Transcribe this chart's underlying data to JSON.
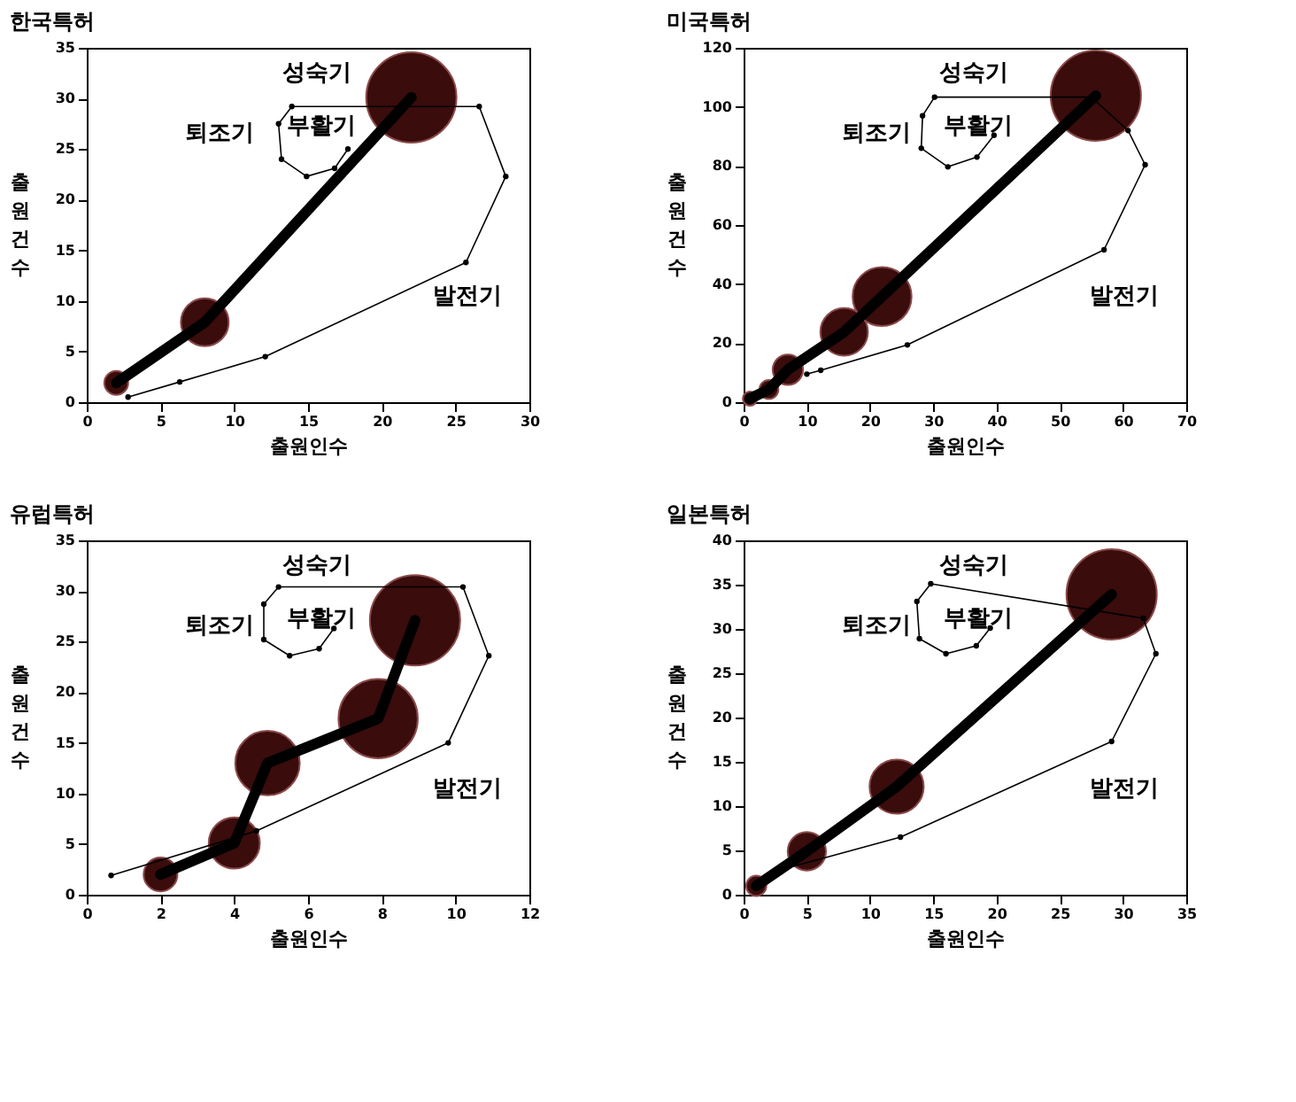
{
  "chart_data": [
    {
      "type": "bubble",
      "title": "한국특허",
      "xlabel": "출원인수",
      "ylabel": "출원건수",
      "xlim": [
        0,
        30
      ],
      "xticks": [
        0,
        5,
        10,
        15,
        20,
        25,
        30
      ],
      "ylim": [
        0,
        35
      ],
      "yticks": [
        0,
        5,
        10,
        15,
        20,
        25,
        30,
        35
      ],
      "grid": false,
      "series": [
        {
          "type": "line",
          "color": "#000000",
          "marker": "none",
          "x": [
            2.0,
            8.0,
            22.0
          ],
          "values": [
            1.9,
            7.9,
            30.1
          ]
        },
        {
          "type": "bubble",
          "color": "#3a0c0c",
          "x": [
            2.0,
            8.0,
            22.0
          ],
          "values": [
            1.9,
            7.9,
            30.1
          ],
          "sizes": [
            0.07,
            0.28,
            1
          ]
        },
        {
          "type": "line",
          "color": "#000000",
          "marker": "circle",
          "x": [
            2.8,
            6.3,
            12.1,
            25.7,
            28.4,
            26.6,
            13.9,
            13.0,
            13.2,
            14.9,
            16.8,
            17.7
          ],
          "values": [
            0.5,
            2.0,
            4.5,
            13.8,
            22.3,
            29.2,
            29.2,
            27.5,
            24.0,
            22.3,
            23.1,
            25.0
          ]
        }
      ],
      "annotations": [
        "성숙기",
        "퇴조기",
        "부활기",
        "발전기"
      ]
    },
    {
      "type": "bubble",
      "title": "미국특허",
      "xlabel": "출원인수",
      "ylabel": "출원건수",
      "xlim": [
        0,
        70
      ],
      "xticks": [
        0,
        10,
        20,
        30,
        40,
        50,
        60,
        70
      ],
      "ylim": [
        0,
        120
      ],
      "yticks": [
        0,
        20,
        40,
        60,
        80,
        100,
        120
      ],
      "grid": false,
      "series": [
        {
          "type": "line",
          "color": "#000000",
          "marker": "none",
          "x": [
            1.0,
            4.0,
            7.0,
            15.9,
            21.9,
            55.7
          ],
          "values": [
            1.2,
            4.3,
            11.0,
            23.8,
            35.8,
            103.8
          ]
        },
        {
          "type": "bubble",
          "color": "#3a0c0c",
          "x": [
            1.0,
            4.0,
            7.0,
            15.9,
            21.9,
            55.7
          ],
          "values": [
            1.2,
            4.3,
            11.0,
            23.8,
            35.8,
            103.8
          ],
          "sizes": [
            0.025,
            0.044,
            0.113,
            0.277,
            0.426,
            1
          ]
        },
        {
          "type": "line",
          "color": "#000000",
          "marker": "circle",
          "x": [
            10.0,
            12.2,
            25.9,
            57.0,
            63.5,
            60.8,
            55.0,
            30.2,
            28.3,
            28.1,
            32.3,
            36.9,
            39.6
          ],
          "values": [
            9.5,
            10.8,
            19.4,
            51.6,
            80.4,
            92.0,
            103.3,
            103.3,
            97.0,
            86.0,
            79.7,
            83.0,
            90.4
          ]
        }
      ],
      "annotations": [
        "성숙기",
        "퇴조기",
        "부활기",
        "발전기"
      ]
    },
    {
      "type": "bubble",
      "title": "유럽특허",
      "xlabel": "출원인수",
      "ylabel": "출원건수",
      "xlim": [
        0,
        12
      ],
      "xticks": [
        0,
        2,
        4,
        6,
        8,
        10,
        12
      ],
      "ylim": [
        0,
        35
      ],
      "yticks": [
        0,
        5,
        10,
        15,
        20,
        25,
        30,
        35
      ],
      "grid": false,
      "series": [
        {
          "type": "line",
          "color": "#000000",
          "marker": "none",
          "x": [
            2.0,
            4.0,
            4.9,
            7.9,
            8.9
          ],
          "values": [
            2.0,
            5.1,
            13.0,
            17.4,
            27.1
          ]
        },
        {
          "type": "bubble",
          "color": "#3a0c0c",
          "x": [
            2.0,
            4.0,
            4.9,
            7.9,
            8.9
          ],
          "values": [
            2.0,
            5.1,
            13.0,
            17.4,
            27.1
          ],
          "sizes": [
            0.14,
            0.32,
            0.51,
            0.77,
            1
          ]
        },
        {
          "type": "line",
          "color": "#000000",
          "marker": "circle",
          "x": [
            0.66,
            4.6,
            9.8,
            10.9,
            10.2,
            5.2,
            4.8,
            4.8,
            5.5,
            6.3,
            6.7
          ],
          "values": [
            1.9,
            6.3,
            15.0,
            23.6,
            30.4,
            30.4,
            28.7,
            25.2,
            23.6,
            24.3,
            26.3
          ]
        }
      ],
      "annotations": [
        "성숙기",
        "퇴조기",
        "부활기",
        "발전기"
      ]
    },
    {
      "type": "bubble",
      "title": "일본특허",
      "xlabel": "출원인수",
      "ylabel": "출원건수",
      "xlim": [
        0,
        35
      ],
      "xticks": [
        0,
        5,
        10,
        15,
        20,
        25,
        30,
        35
      ],
      "ylim": [
        0,
        40
      ],
      "yticks": [
        0,
        5,
        10,
        15,
        20,
        25,
        30,
        35,
        40
      ],
      "grid": false,
      "series": [
        {
          "type": "line",
          "color": "#000000",
          "marker": "none",
          "x": [
            1.0,
            5.0,
            12.1,
            29.1
          ],
          "values": [
            1.0,
            4.9,
            12.2,
            33.9
          ]
        },
        {
          "type": "bubble",
          "color": "#3a0c0c",
          "x": [
            1.0,
            5.0,
            12.1,
            29.1
          ],
          "values": [
            1.0,
            4.9,
            12.2,
            33.9
          ],
          "sizes": [
            0.05,
            0.18,
            0.36,
            1
          ]
        },
        {
          "type": "line",
          "color": "#000000",
          "marker": "circle",
          "x": [
            2.9,
            12.4,
            29.1,
            32.6,
            31.6,
            14.8,
            13.7,
            13.9,
            16.0,
            18.4,
            19.5
          ],
          "values": [
            2.8,
            6.5,
            17.3,
            27.2,
            31.2,
            35.1,
            33.1,
            28.9,
            27.2,
            28.1,
            30.1
          ]
        }
      ],
      "annotations": [
        "성숙기",
        "퇴조기",
        "부활기",
        "발전기"
      ]
    }
  ]
}
